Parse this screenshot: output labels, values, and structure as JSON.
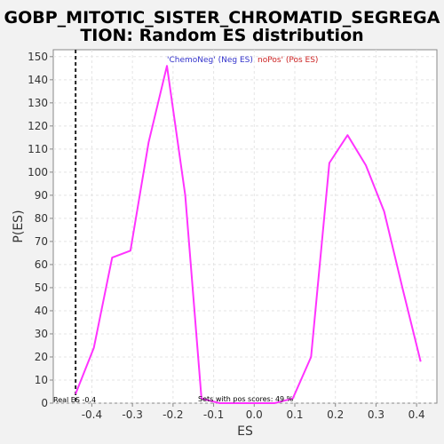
{
  "chart_data": {
    "type": "line",
    "title_line1": "GOBP_MITOTIC_SISTER_CHROMATID_SEGREGA",
    "title_line2": "TION: Random ES distribution",
    "xlabel": "ES",
    "ylabel": "P(ES)",
    "xlim": [
      -0.495,
      0.45
    ],
    "ylim": [
      0,
      153
    ],
    "xticks": [
      -0.4,
      -0.3,
      -0.2,
      -0.1,
      0.0,
      0.1,
      0.2,
      0.3,
      0.4
    ],
    "xtick_labels": [
      "-0.4",
      "-0.3",
      "-0.2",
      "-0.1",
      "0.0",
      "0.1",
      "0.2",
      "0.3",
      "0.4"
    ],
    "yticks": [
      0,
      10,
      20,
      30,
      40,
      50,
      60,
      70,
      80,
      90,
      100,
      110,
      120,
      130,
      140,
      150
    ],
    "grid": true,
    "series": [
      {
        "color": "#ff33ff",
        "x": [
          -0.44,
          -0.395,
          -0.35,
          -0.305,
          -0.26,
          -0.215,
          -0.17,
          -0.13,
          -0.085,
          -0.04,
          0.005,
          0.05,
          0.095,
          0.14,
          0.185,
          0.23,
          0.275,
          0.32,
          0.365,
          0.41
        ],
        "y": [
          4,
          24,
          63,
          66,
          113,
          146,
          90,
          2,
          0,
          0,
          0,
          0,
          2,
          20,
          104,
          116,
          103,
          83,
          50,
          18
        ]
      }
    ],
    "real_es": -0.44,
    "real_es_label": "Real ES -0.4",
    "legend": {
      "neg_label": "'ChemoNeg' (Neg ES)",
      "neg_color": "#3333cc",
      "pos_label": "noPos' (Pos ES)",
      "pos_color": "#cc2222"
    },
    "pos_scores_label": "Sets with pos scores: 49 %"
  }
}
